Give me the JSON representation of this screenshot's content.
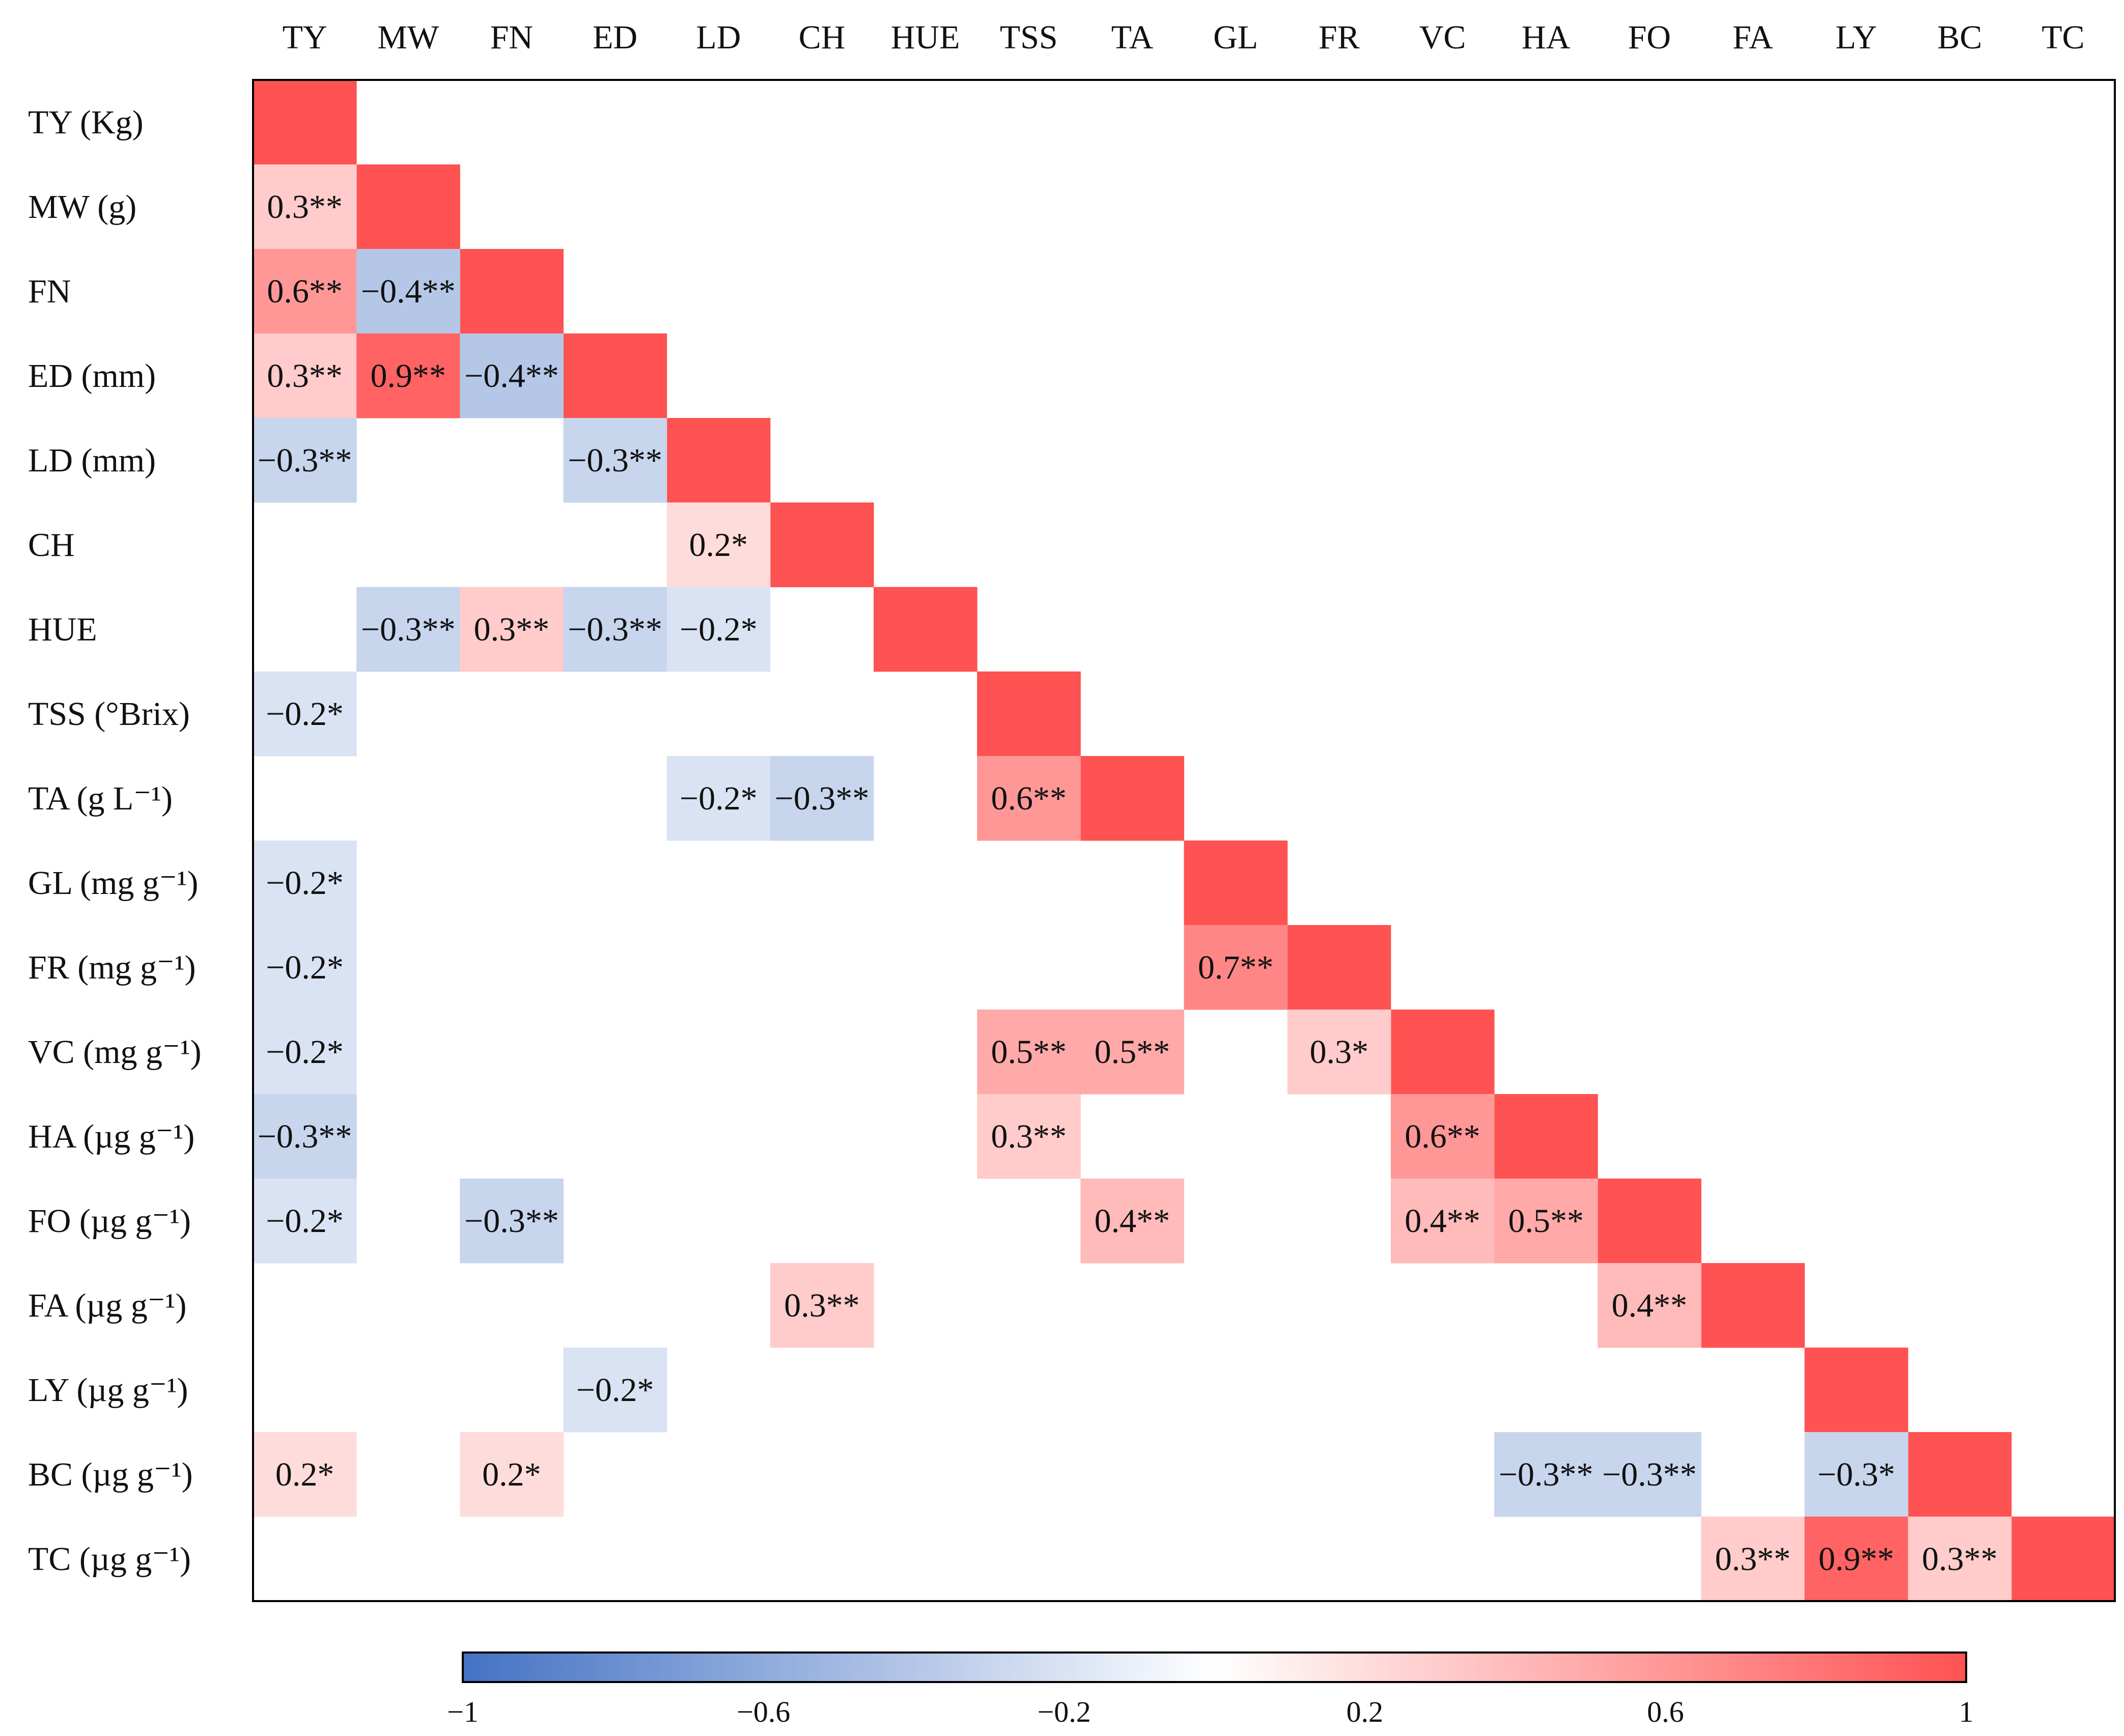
{
  "chart_data": {
    "type": "heatmap",
    "title": "",
    "xlabel": "",
    "ylabel": "",
    "columns": [
      "TY",
      "MW",
      "FN",
      "ED",
      "LD",
      "CH",
      "HUE",
      "TSS",
      "TA",
      "GL",
      "FR",
      "VC",
      "HA",
      "FO",
      "FA",
      "LY",
      "BC",
      "TC"
    ],
    "rows": [
      "TY (Kg)",
      "MW (g)",
      "FN",
      "ED (mm)",
      "LD (mm)",
      "CH",
      "HUE",
      "TSS (°Brix)",
      "TA (g L⁻¹)",
      "GL (mg g⁻¹)",
      "FR (mg g⁻¹)",
      "VC (mg g⁻¹)",
      "HA (µg g⁻¹)",
      "FO (µg g⁻¹)",
      "FA (µg g⁻¹)",
      "LY (µg g⁻¹)",
      "BC (µg g⁻¹)",
      "TC (µg g⁻¹)"
    ],
    "cells": [
      {
        "row": 1,
        "col": 0,
        "value": 0.3,
        "label": "0.3**"
      },
      {
        "row": 2,
        "col": 0,
        "value": 0.6,
        "label": "0.6**"
      },
      {
        "row": 2,
        "col": 1,
        "value": -0.4,
        "label": "−0.4**"
      },
      {
        "row": 3,
        "col": 0,
        "value": 0.3,
        "label": "0.3**"
      },
      {
        "row": 3,
        "col": 1,
        "value": 0.9,
        "label": "0.9**"
      },
      {
        "row": 3,
        "col": 2,
        "value": -0.4,
        "label": "−0.4**"
      },
      {
        "row": 4,
        "col": 0,
        "value": -0.3,
        "label": "−0.3**"
      },
      {
        "row": 4,
        "col": 3,
        "value": -0.3,
        "label": "−0.3**"
      },
      {
        "row": 5,
        "col": 4,
        "value": 0.2,
        "label": "0.2*"
      },
      {
        "row": 6,
        "col": 1,
        "value": -0.3,
        "label": "−0.3**"
      },
      {
        "row": 6,
        "col": 2,
        "value": 0.3,
        "label": "0.3**"
      },
      {
        "row": 6,
        "col": 3,
        "value": -0.3,
        "label": "−0.3**"
      },
      {
        "row": 6,
        "col": 4,
        "value": -0.2,
        "label": "−0.2*"
      },
      {
        "row": 7,
        "col": 0,
        "value": -0.2,
        "label": "−0.2*"
      },
      {
        "row": 8,
        "col": 4,
        "value": -0.2,
        "label": "−0.2*"
      },
      {
        "row": 8,
        "col": 5,
        "value": -0.3,
        "label": "−0.3**"
      },
      {
        "row": 8,
        "col": 7,
        "value": 0.6,
        "label": "0.6**"
      },
      {
        "row": 9,
        "col": 0,
        "value": -0.2,
        "label": "−0.2*"
      },
      {
        "row": 10,
        "col": 0,
        "value": -0.2,
        "label": "−0.2*"
      },
      {
        "row": 10,
        "col": 9,
        "value": 0.7,
        "label": "0.7**"
      },
      {
        "row": 11,
        "col": 0,
        "value": -0.2,
        "label": "−0.2*"
      },
      {
        "row": 11,
        "col": 7,
        "value": 0.5,
        "label": "0.5**"
      },
      {
        "row": 11,
        "col": 8,
        "value": 0.5,
        "label": "0.5**"
      },
      {
        "row": 11,
        "col": 10,
        "value": 0.3,
        "label": "0.3*"
      },
      {
        "row": 12,
        "col": 0,
        "value": -0.3,
        "label": "−0.3**"
      },
      {
        "row": 12,
        "col": 7,
        "value": 0.3,
        "label": "0.3**"
      },
      {
        "row": 12,
        "col": 11,
        "value": 0.6,
        "label": "0.6**"
      },
      {
        "row": 13,
        "col": 0,
        "value": -0.2,
        "label": "−0.2*"
      },
      {
        "row": 13,
        "col": 2,
        "value": -0.3,
        "label": "−0.3**"
      },
      {
        "row": 13,
        "col": 8,
        "value": 0.4,
        "label": "0.4**"
      },
      {
        "row": 13,
        "col": 11,
        "value": 0.4,
        "label": "0.4**"
      },
      {
        "row": 13,
        "col": 12,
        "value": 0.5,
        "label": "0.5**"
      },
      {
        "row": 14,
        "col": 5,
        "value": 0.3,
        "label": "0.3**"
      },
      {
        "row": 14,
        "col": 13,
        "value": 0.4,
        "label": "0.4**"
      },
      {
        "row": 15,
        "col": 3,
        "value": -0.2,
        "label": "−0.2*"
      },
      {
        "row": 16,
        "col": 0,
        "value": 0.2,
        "label": "0.2*"
      },
      {
        "row": 16,
        "col": 2,
        "value": 0.2,
        "label": "0.2*"
      },
      {
        "row": 16,
        "col": 12,
        "value": -0.3,
        "label": "−0.3**"
      },
      {
        "row": 16,
        "col": 13,
        "value": -0.3,
        "label": "−0.3**"
      },
      {
        "row": 16,
        "col": 15,
        "value": -0.3,
        "label": "−0.3*"
      },
      {
        "row": 17,
        "col": 14,
        "value": 0.3,
        "label": "0.3**"
      },
      {
        "row": 17,
        "col": 15,
        "value": 0.9,
        "label": "0.9**"
      },
      {
        "row": 17,
        "col": 16,
        "value": 0.3,
        "label": "0.3**"
      }
    ],
    "diagonal_value": 1,
    "colorbar": {
      "range": [
        -1,
        1
      ],
      "ticks": [
        -1,
        -0.6,
        -0.2,
        0.2,
        0.6,
        1
      ],
      "tick_labels": [
        "−1",
        "−0.6",
        "−0.2",
        "0.2",
        "0.6",
        "1"
      ],
      "negative_color": "#4472C4",
      "neutral_color": "#FFFFFF",
      "positive_color": "#FF5252"
    },
    "legend_placement": "bottom"
  }
}
